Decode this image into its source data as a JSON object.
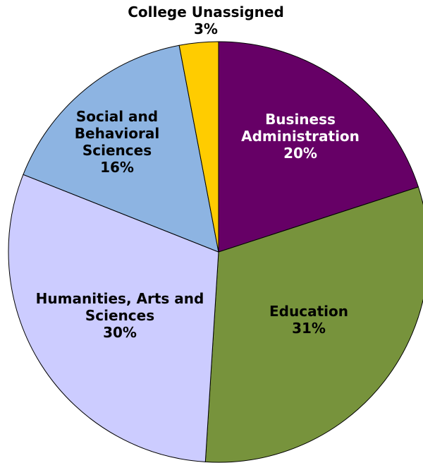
{
  "chart_data": {
    "type": "pie",
    "title": "",
    "start_angle_deg": 90,
    "direction": "clockwise",
    "slices": [
      {
        "category": "Business Administration",
        "value": 20,
        "label_lines": [
          "Business",
          "Administration",
          "20%"
        ],
        "color": "#660066",
        "label_color": "#ffffff"
      },
      {
        "category": "Education",
        "value": 31,
        "label_lines": [
          "Education",
          "31%"
        ],
        "color": "#77933c",
        "label_color": "#000000"
      },
      {
        "category": "Humanities, Arts and Sciences",
        "value": 30,
        "label_lines": [
          "Humanities, Arts and",
          "Sciences",
          "30%"
        ],
        "color": "#ccccff",
        "label_color": "#000000"
      },
      {
        "category": "Social and Behavioral Sciences",
        "value": 16,
        "label_lines": [
          "Social and",
          "Behavioral",
          "Sciences",
          "16%"
        ],
        "color": "#8db4e2",
        "label_color": "#000000"
      },
      {
        "category": "College Unassigned",
        "value": 3,
        "label_lines": [
          "College Unassigned",
          "3%"
        ],
        "color": "#ffcc00",
        "label_color": "#000000",
        "label_outside": true
      }
    ]
  }
}
